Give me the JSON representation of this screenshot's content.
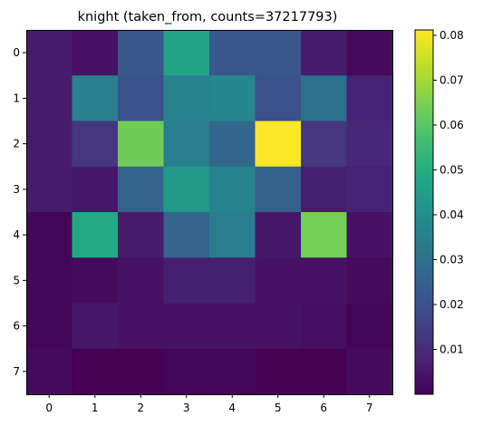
{
  "chart_data": {
    "type": "heatmap",
    "title": "knight (taken_from, counts=37217793)",
    "xlabel": "",
    "ylabel": "",
    "x_ticks": [
      "0",
      "1",
      "2",
      "3",
      "4",
      "5",
      "6",
      "7"
    ],
    "y_ticks": [
      "0",
      "1",
      "2",
      "3",
      "4",
      "5",
      "6",
      "7"
    ],
    "values": [
      [
        0.006,
        0.004,
        0.022,
        0.047,
        0.022,
        0.022,
        0.006,
        0.002
      ],
      [
        0.006,
        0.035,
        0.02,
        0.036,
        0.037,
        0.02,
        0.03,
        0.008
      ],
      [
        0.006,
        0.013,
        0.063,
        0.034,
        0.027,
        0.081,
        0.013,
        0.009
      ],
      [
        0.006,
        0.005,
        0.026,
        0.043,
        0.036,
        0.025,
        0.007,
        0.008
      ],
      [
        0.001,
        0.049,
        0.006,
        0.026,
        0.034,
        0.005,
        0.064,
        0.004
      ],
      [
        0.001,
        0.002,
        0.004,
        0.007,
        0.007,
        0.004,
        0.004,
        0.002
      ],
      [
        0.001,
        0.005,
        0.004,
        0.004,
        0.004,
        0.004,
        0.003,
        0.001
      ],
      [
        0.002,
        0.0,
        0.0,
        0.001,
        0.001,
        0.0,
        0.0,
        0.002
      ]
    ],
    "colorbar": {
      "colormap": "viridis",
      "vmin": 0.0,
      "vmax": 0.0812,
      "ticks": [
        0.01,
        0.02,
        0.03,
        0.04,
        0.05,
        0.06,
        0.07,
        0.08
      ],
      "tick_labels": [
        "0.01",
        "0.02",
        "0.03",
        "0.04",
        "0.05",
        "0.06",
        "0.07",
        "0.08"
      ]
    },
    "grid": false,
    "legend": "none"
  }
}
